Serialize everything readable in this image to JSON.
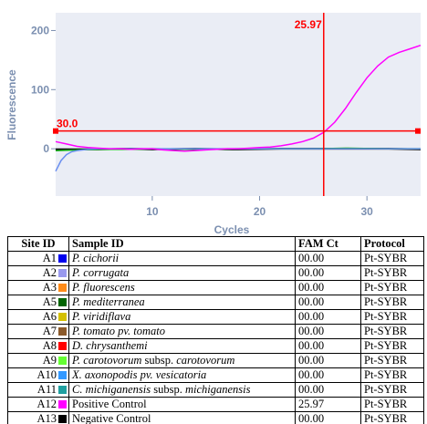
{
  "chart_data": {
    "type": "line",
    "xlabel": "Cycles",
    "ylabel": "Fluorescence",
    "xlim": [
      1,
      35
    ],
    "ylim": [
      -80,
      230
    ],
    "x_ticks": [
      "10",
      "20",
      "30"
    ],
    "y_ticks": [
      "200",
      "100",
      "0"
    ],
    "threshold": {
      "value": 30.0,
      "label": "30.0",
      "color": "#ff0000"
    },
    "ct_marker": {
      "x": 25.97,
      "label": "25.97",
      "color": "#ff0000"
    },
    "grid": false,
    "series": [
      {
        "color": "#ff00ff",
        "x": [
          1,
          2,
          3,
          4,
          5,
          6,
          7,
          8,
          9,
          10,
          11,
          12,
          13,
          14,
          15,
          16,
          17,
          18,
          19,
          20,
          21,
          22,
          23,
          24,
          25,
          26,
          27,
          28,
          29,
          30,
          31,
          32,
          33,
          34,
          35
        ],
        "y": [
          12,
          8,
          4,
          2,
          1,
          0,
          0,
          -1,
          0,
          0,
          -2,
          -3,
          -4,
          -3,
          -2,
          -1,
          0,
          0,
          1,
          2,
          3,
          5,
          8,
          12,
          18,
          28,
          45,
          68,
          95,
          120,
          140,
          155,
          163,
          169,
          175
        ]
      },
      {
        "color": "#6a8ff0",
        "x": [
          1,
          1.5,
          2,
          2.5,
          3,
          4,
          5,
          6,
          8,
          10,
          15,
          20,
          25,
          30,
          35
        ],
        "y": [
          -38,
          -20,
          -10,
          -5,
          -3,
          -1,
          0,
          0,
          0,
          0,
          0,
          0,
          0,
          0,
          0
        ]
      },
      {
        "color": "#00aa00",
        "x": [
          1,
          3,
          5,
          8,
          10,
          14,
          18,
          22,
          25,
          28,
          32,
          35
        ],
        "y": [
          -3,
          -2,
          -1,
          -1,
          0,
          -1,
          0,
          0,
          0,
          1,
          0,
          0
        ]
      },
      {
        "color": "#000000",
        "x": [
          1,
          3,
          5,
          8,
          10,
          14,
          18,
          22,
          25,
          28,
          32,
          35
        ],
        "y": [
          -1,
          -1,
          -1,
          0,
          -1,
          0,
          -1,
          0,
          0,
          0,
          0,
          -1
        ]
      }
    ]
  },
  "table": {
    "headers": [
      "Site ID",
      "Sample ID",
      "FAM Ct",
      "Protocol"
    ],
    "rows": [
      {
        "site": "A1",
        "color": "#0000ee",
        "sample": [
          {
            "t": "P. cichorii",
            "i": true
          }
        ],
        "ct": "00.00",
        "protocol": "Pt-SYBR"
      },
      {
        "site": "A2",
        "color": "#9999ee",
        "sample": [
          {
            "t": "P. corrugata",
            "i": true
          }
        ],
        "ct": "00.00",
        "protocol": "Pt-SYBR"
      },
      {
        "site": "A3",
        "color": "#ff8c1a",
        "sample": [
          {
            "t": "P. fluorescens",
            "i": true
          }
        ],
        "ct": "00.00",
        "protocol": "Pt-SYBR"
      },
      {
        "site": "A5",
        "color": "#006400",
        "sample": [
          {
            "t": "P. mediterranea",
            "i": true
          }
        ],
        "ct": "00.00",
        "protocol": "Pt-SYBR"
      },
      {
        "site": "A6",
        "color": "#d4c000",
        "sample": [
          {
            "t": "P. viridiflava",
            "i": true
          }
        ],
        "ct": "00.00",
        "protocol": "Pt-SYBR"
      },
      {
        "site": "A7",
        "color": "#8b5a2b",
        "sample": [
          {
            "t": "P. tomato pv. tomato",
            "i": true
          }
        ],
        "ct": "00.00",
        "protocol": "Pt-SYBR"
      },
      {
        "site": "A8",
        "color": "#ff0000",
        "sample": [
          {
            "t": "D. chrysanthemi",
            "i": true
          }
        ],
        "ct": "00.00",
        "protocol": "Pt-SYBR"
      },
      {
        "site": "A9",
        "color": "#66ff33",
        "sample": [
          {
            "t": "P. carotovorum",
            "i": true
          },
          {
            "t": " subsp. ",
            "i": false
          },
          {
            "t": "carotovorum",
            "i": true
          }
        ],
        "ct": "00.00",
        "protocol": "Pt-SYBR"
      },
      {
        "site": "A10",
        "color": "#3399ff",
        "sample": [
          {
            "t": "X. axonopodis pv. vesicatoria",
            "i": true
          }
        ],
        "ct": "00.00",
        "protocol": "Pt-SYBR"
      },
      {
        "site": "A11",
        "color": "#20a0a0",
        "sample": [
          {
            "t": "C. michiganensis",
            "i": true
          },
          {
            "t": " subsp. ",
            "i": false
          },
          {
            "t": "michiganensis",
            "i": true
          }
        ],
        "ct": "00.00",
        "protocol": "Pt-SYBR"
      },
      {
        "site": "A12",
        "color": "#ff00ff",
        "sample": [
          {
            "t": "Positive Control",
            "i": false
          }
        ],
        "ct": "25.97",
        "protocol": "Pt-SYBR"
      },
      {
        "site": "A13",
        "color": "#000000",
        "sample": [
          {
            "t": "Negative Control",
            "i": false
          }
        ],
        "ct": "00.00",
        "protocol": "Pt-SYBR"
      }
    ]
  }
}
